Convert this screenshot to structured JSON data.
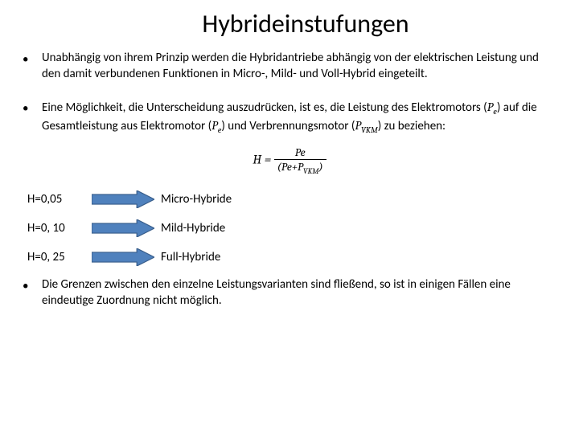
{
  "title": "Hybrideinstufungen",
  "bullets": {
    "b1": "Unabhängig von ihrem Prinzip werden die Hybridantriebe abhängig von der elektrischen Leistung und den damit verbundenen Funktionen in Micro-, Mild- und Voll-Hybrid eingeteilt.",
    "b2_pre": "Eine Möglichkeit, die Unterscheidung auszudrücken, ist es, die Leistung des Elektromotors (",
    "b2_p1": "P",
    "b2_p1s": "e",
    "b2_mid1": ") auf die Gesamtleistung aus Elektromotor (",
    "b2_p2": "P",
    "b2_p2s": "e",
    "b2_mid2": ") und Verbrennungsmotor (",
    "b2_p3": "P",
    "b2_p3s": "VKM",
    "b2_post": ") zu beziehen:",
    "b3": "Die Grenzen zwischen den einzelne Leistungsvarianten sind fließend, so ist in einigen Fällen eine eindeutige Zuordnung nicht möglich."
  },
  "formula": {
    "lhs": "H",
    "eq": " = ",
    "num": "Pe",
    "den_open": "(Pe+P",
    "den_sub": "VKM",
    "den_close": ")"
  },
  "classes": [
    {
      "h": "H=0,05",
      "label": "Micro-Hybride"
    },
    {
      "h": "H=0, 10",
      "label": "Mild-Hybride"
    },
    {
      "h": "H=0, 25",
      "label": "Full-Hybride"
    }
  ],
  "arrow": {
    "fill": "#4f81bd",
    "stroke": "#385d8a",
    "width": 78,
    "height": 22
  }
}
